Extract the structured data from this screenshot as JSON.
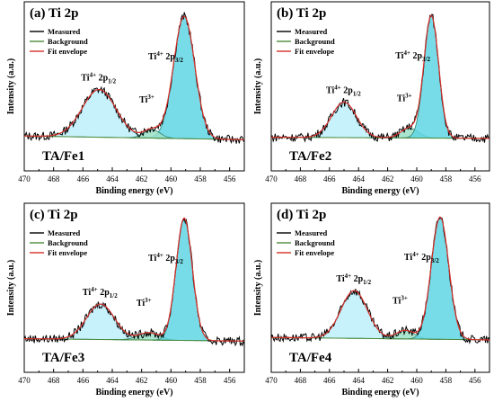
{
  "chart_data": [
    {
      "type": "line",
      "panel_label": "(a)",
      "title": "Ti 2p",
      "sample_label": "TA/Fe1",
      "xlabel": "Binding energy (eV)",
      "ylabel": "Intensity (a.u.)",
      "xlim": [
        470,
        455
      ],
      "xticks": [
        470,
        468,
        466,
        464,
        462,
        460,
        458,
        456
      ],
      "legend": [
        "Measured",
        "Background",
        "Fit envelope"
      ],
      "legend_position": "top-left",
      "peaks": [
        {
          "label_main": "Ti",
          "label_sup": "4+",
          "label_rest": " 2p",
          "label_sub": "1/2",
          "center": 464.9,
          "height": 0.39,
          "width": 1.15,
          "fill": "#bdeefa"
        },
        {
          "label_main": "Ti",
          "label_sup": "3+",
          "label_rest": "",
          "label_sub": "",
          "center": 461.3,
          "height": 0.07,
          "width": 0.55,
          "fill": "#9be0c8"
        },
        {
          "label_main": "Ti",
          "label_sup": "4+",
          "label_rest": " 2p",
          "label_sub": "3/2",
          "center": 459.1,
          "height": 1.0,
          "width": 0.72,
          "fill": "#5fd6e3"
        }
      ],
      "background": {
        "start": 0.05,
        "end": 0.02
      }
    },
    {
      "type": "line",
      "panel_label": "(b)",
      "title": "Ti 2p",
      "sample_label": "TA/Fe2",
      "xlabel": "Binding energy (eV)",
      "ylabel": "Intensity (a.u.)",
      "xlim": [
        470,
        455
      ],
      "xticks": [
        470,
        468,
        466,
        464,
        462,
        460,
        458,
        456
      ],
      "legend": [
        "Measured",
        "Background",
        "Fit envelope"
      ],
      "legend_position": "top-left",
      "peaks": [
        {
          "label_main": "Ti",
          "label_sup": "4+",
          "label_rest": " 2p",
          "label_sub": "1/2",
          "center": 465.0,
          "height": 0.29,
          "width": 0.85,
          "fill": "#bdeefa"
        },
        {
          "label_main": "Ti",
          "label_sup": "3+",
          "label_rest": "",
          "label_sub": "",
          "center": 460.5,
          "height": 0.08,
          "width": 0.6,
          "fill": "#9be0c8"
        },
        {
          "label_main": "Ti",
          "label_sup": "4+",
          "label_rest": " 2p",
          "label_sub": "3/2",
          "center": 459.0,
          "height": 1.0,
          "width": 0.5,
          "fill": "#5fd6e3"
        }
      ],
      "background": {
        "start": 0.04,
        "end": 0.03
      }
    },
    {
      "type": "line",
      "panel_label": "(c)",
      "title": "Ti 2p",
      "sample_label": "TA/Fe3",
      "xlabel": "Binding energy (eV)",
      "ylabel": "Intensity (a.u.)",
      "xlim": [
        470,
        455
      ],
      "xticks": [
        470,
        468,
        466,
        464,
        462,
        460,
        458,
        456
      ],
      "legend": [
        "Measured",
        "Background",
        "Fit envelope"
      ],
      "legend_position": "top-left",
      "peaks": [
        {
          "label_main": "Ti",
          "label_sup": "4+",
          "label_rest": " 2p",
          "label_sub": "1/2",
          "center": 464.8,
          "height": 0.29,
          "width": 0.95,
          "fill": "#bdeefa"
        },
        {
          "label_main": "Ti",
          "label_sup": "3+",
          "label_rest": "",
          "label_sub": "",
          "center": 461.5,
          "height": 0.06,
          "width": 0.7,
          "fill": "#9be0c8"
        },
        {
          "label_main": "Ti",
          "label_sup": "4+",
          "label_rest": " 2p",
          "label_sub": "3/2",
          "center": 459.1,
          "height": 1.0,
          "width": 0.55,
          "fill": "#5fd6e3"
        }
      ],
      "background": {
        "start": 0.04,
        "end": 0.02
      }
    },
    {
      "type": "line",
      "panel_label": "(d)",
      "title": "Ti 2p",
      "sample_label": "TA/Fe4",
      "xlabel": "Binding energy (eV)",
      "ylabel": "Intensity (a.u.)",
      "xlim": [
        470,
        455
      ],
      "xticks": [
        470,
        468,
        466,
        464,
        462,
        460,
        458,
        456
      ],
      "legend": [
        "Measured",
        "Background",
        "Fit envelope"
      ],
      "legend_position": "top-left",
      "peaks": [
        {
          "label_main": "Ti",
          "label_sup": "4+",
          "label_rest": " 2p",
          "label_sub": "1/2",
          "center": 464.3,
          "height": 0.39,
          "width": 0.9,
          "fill": "#bdeefa"
        },
        {
          "label_main": "Ti",
          "label_sup": "3+",
          "label_rest": "",
          "label_sub": "",
          "center": 460.8,
          "height": 0.07,
          "width": 0.6,
          "fill": "#9be0c8"
        },
        {
          "label_main": "Ti",
          "label_sup": "4+",
          "label_rest": " 2p",
          "label_sub": "3/2",
          "center": 458.4,
          "height": 1.0,
          "width": 0.6,
          "fill": "#5fd6e3"
        }
      ],
      "background": {
        "start": 0.05,
        "end": 0.03
      }
    }
  ],
  "colors": {
    "measured": "#000000",
    "background": "#4a8c3a",
    "envelope": "#d6302a"
  }
}
